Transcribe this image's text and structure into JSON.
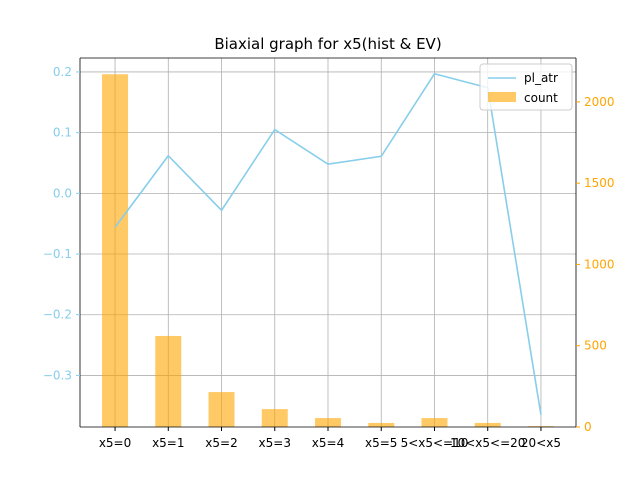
{
  "chart_data": {
    "type": "bar+line",
    "title": "Biaxial graph for x5(hist & EV)",
    "xlabel": "",
    "categories": [
      "x5=0",
      "x5=1",
      "x5=2",
      "x5=3",
      "x5=4",
      "x5=5",
      "5<x5<=10",
      "10<x5<=20",
      "20<x5"
    ],
    "grid": true,
    "legend_position": "top-right",
    "series": [
      {
        "name": "pl_atr",
        "type": "line",
        "axis": "left",
        "color": "#87CEEB",
        "values": [
          -0.056,
          0.062,
          -0.028,
          0.105,
          0.048,
          0.061,
          0.197,
          0.174,
          -0.365
        ]
      },
      {
        "name": "count",
        "type": "bar",
        "axis": "right",
        "color": "#FFA500",
        "values": [
          2170,
          560,
          215,
          110,
          55,
          25,
          55,
          25,
          5
        ]
      }
    ],
    "left_axis": {
      "ylim": [
        -0.385,
        0.223
      ],
      "ticks": [
        0.2,
        0.1,
        0.0,
        -0.1,
        -0.2,
        -0.3
      ],
      "tick_labels": [
        "0.2",
        "0.1",
        "0.0",
        "−0.1",
        "−0.2",
        "−0.3"
      ],
      "color": "#87CEEB"
    },
    "right_axis": {
      "ylim": [
        0,
        2270
      ],
      "ticks": [
        0,
        500,
        1000,
        1500,
        2000
      ],
      "tick_labels": [
        "0",
        "500",
        "1000",
        "1500",
        "2000"
      ],
      "color": "#FFA500"
    }
  }
}
